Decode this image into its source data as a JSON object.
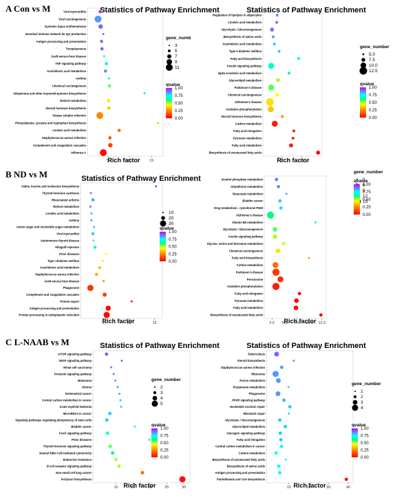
{
  "panels": [
    {
      "label": "A  Con vs M"
    },
    {
      "label": "B  ND vs M"
    },
    {
      "label": "C  L-NAAB vs M"
    }
  ],
  "scale": {
    "stops": [
      [
        0,
        "#ff0000"
      ],
      [
        0.25,
        "#ff8800"
      ],
      [
        0.45,
        "#ffff00"
      ],
      [
        0.6,
        "#00ff88"
      ],
      [
        0.75,
        "#00ffff"
      ],
      [
        1.0,
        "#cc00ff"
      ]
    ],
    "ticks": [
      "1.00",
      "0.75",
      "0.50",
      "0.25",
      "0.00"
    ]
  },
  "chart_data": [
    {
      "type": "scatter",
      "title": "Statistics of Pathway Enrichment",
      "xlabel": "Rich factor",
      "xlim": [
        1,
        17
      ],
      "xticks": [
        5,
        10,
        15
      ],
      "categories": [
        "Viral myocarditis",
        "Viral carcinogenesis",
        "Systemic lupus erythematosus",
        "Intestinal immune network for IgA production",
        "Antigen processing and presentation",
        "Toxoplasmosis",
        "Graft-versus-host disease",
        "TNF signaling pathway",
        "Arachidonic acid metabolism",
        "Asthma",
        "Chemical carcinogenesis",
        "Ubiquinone and other terpenoid-quinone biosynthesis",
        "Retinol metabolism",
        "Steroid hormone biosynthesis",
        "Herpes simplex infection",
        "Phenylalanine, tyrosine and tryptophan biosynthesis",
        "Linoleic acid metabolism",
        "Staphylococcus aureus infection",
        "Complement and coagulation cascades",
        "Influenza A"
      ],
      "x": [
        3.3,
        2.8,
        3.4,
        4.0,
        3.6,
        3.7,
        4.2,
        4.7,
        4.5,
        5.3,
        5.4,
        13.4,
        5.2,
        5.3,
        3.2,
        16.5,
        7.6,
        5.5,
        5.6,
        4.0
      ],
      "size": [
        5,
        11,
        7,
        3,
        5,
        5,
        3,
        5,
        5,
        3,
        5,
        3,
        5,
        5,
        11,
        3,
        5,
        5,
        7,
        11
      ],
      "qvalue": [
        0.95,
        0.85,
        0.9,
        0.92,
        0.88,
        0.9,
        0.7,
        0.65,
        0.85,
        0.6,
        0.55,
        0.65,
        0.4,
        0.35,
        0.25,
        0.35,
        0.2,
        0.15,
        0.12,
        0.02
      ],
      "size_legend": {
        "title": "gene_numb",
        "values": [
          3,
          5,
          7,
          9,
          11
        ]
      },
      "color_legend": {
        "title": "qvalue"
      }
    },
    {
      "type": "scatter",
      "title": "Statistics of Pathway Enrichment",
      "xlabel": "Rich factor",
      "xlim": [
        1,
        14.5
      ],
      "xticks": [
        5,
        10
      ],
      "categories": [
        "Regulation of lipolysis in adipocytes",
        "Linoleic acid metabolism",
        "Glycolysis / Gluconeogenesis",
        "Biosynthesis of amino acids",
        "Arachidonic acid metabolism",
        "Type II diabetes mellitus",
        "Fatty acid biosynthesis",
        "Insulin signaling pathway",
        "alpha-Linolenic acid metabolism",
        "Glycerolipid metabolism",
        "Parkinson's disease",
        "Chemical carcinogenesis",
        "Alzheimer's disease",
        "Oxidative phosphorylation",
        "Steroid hormone biosynthesis",
        "Carbon metabolism",
        "Fatty acid elongation",
        "Pyruvate metabolism",
        "Fatty acid metabolism",
        "Biosynthesis of unsaturated fatty acids"
      ],
      "x": [
        3.9,
        3.8,
        2.6,
        2.9,
        3.2,
        4.4,
        9.3,
        2.4,
        6.9,
        4.1,
        2.4,
        3.9,
        2.1,
        2.3,
        5.2,
        3.3,
        8.1,
        7.9,
        7.4,
        14.2
      ],
      "size": [
        5,
        5,
        7,
        5,
        5,
        5,
        5,
        10,
        5,
        7,
        10,
        7,
        12.5,
        10,
        5,
        10,
        5,
        5,
        7,
        7
      ],
      "qvalue": [
        0.85,
        0.9,
        0.88,
        0.85,
        0.8,
        0.8,
        0.65,
        0.68,
        0.6,
        0.5,
        0.55,
        0.45,
        0.4,
        0.35,
        0.25,
        0.05,
        0.05,
        0.05,
        0.05,
        0.02
      ],
      "size_legend": {
        "title": "gene_number",
        "values": [
          "5.0",
          "7.5",
          "10.0",
          "12.5"
        ]
      },
      "color_legend": {
        "title": "qvalue"
      }
    },
    {
      "type": "scatter",
      "title": "Statistics of Pathway Enrichment",
      "xlabel": "Rich factor",
      "xlim": [
        1,
        16
      ],
      "xticks": [
        5,
        10,
        15
      ],
      "categories": [
        "Valine, leucine and isoleucine biosynthesis",
        "Thyroid hormone synthesis",
        "Rheumatoid arthritis",
        "Retinol metabolism",
        "Linoleic acid metabolism",
        "Asthma",
        "Amino sugar and nucleotide sugar metabolism",
        "Viral myocarditis",
        "Autoimmune thyroid disease",
        "Allograft rejection",
        "Prion diseases",
        "Type I diabetes mellitus",
        "Arachidonic acid metabolism",
        "Staphylococcus aureus infection",
        "Graft-versus-host disease",
        "Phagosome",
        "Complement and coagulation cascades",
        "Protein export",
        "Antigen processing and presentation",
        "Protein processing in endoplasmic reticulum"
      ],
      "x": [
        15.3,
        2.5,
        2.9,
        2.4,
        2.6,
        2.6,
        3.1,
        2.9,
        3.0,
        3.3,
        5.5,
        4.8,
        4.2,
        3.6,
        5.0,
        2.4,
        5.2,
        10.5,
        5.9,
        5.6
      ],
      "size": [
        10,
        10,
        15,
        10,
        10,
        10,
        10,
        15,
        10,
        15,
        10,
        10,
        15,
        15,
        10,
        30,
        20,
        10,
        25,
        30
      ],
      "qvalue": [
        0.95,
        0.9,
        0.85,
        0.9,
        0.82,
        0.85,
        0.8,
        0.8,
        0.7,
        0.65,
        0.45,
        0.4,
        0.35,
        0.3,
        0.25,
        0.1,
        0.12,
        0.05,
        0.02,
        0.01
      ],
      "size_legend": {
        "title": "",
        "values": [
          10,
          20,
          30
        ]
      },
      "color_legend": {
        "title": "qvalue"
      }
    },
    {
      "type": "scatter",
      "title": "",
      "xlabel": "Rich factor",
      "xlim": [
        1.5,
        12.8
      ],
      "xticks": [
        "2.5",
        "5.0",
        "7.5",
        "10.0",
        "12.5"
      ],
      "categories": [
        "Inositol phosphate metabolism",
        "Glutathione metabolism",
        "Butanoate metabolism",
        "Bladder cancer",
        "Drug metabolism - cytochrome P450",
        "Alzheimer's disease",
        "Vitamin B6 metabolism",
        "Glycolysis / Gluconeogenesis",
        "Insulin signaling pathway",
        "Glycine, serine and threonine metabolism",
        "Chemical carcinogenesis",
        "Fatty acid biosynthesis",
        "Carbon metabolism",
        "Parkinson's disease",
        "Peroxisome",
        "Oxidative phosphorylation",
        "Fatty acid elongation",
        "Pyruvate metabolism",
        "Fatty acid metabolism",
        "Biosynthesis of unsaturated fatty acids"
      ],
      "x": [
        3.4,
        3.8,
        5.4,
        4.1,
        4.3,
        2.2,
        11.2,
        3.1,
        3.1,
        4.8,
        3.7,
        9.9,
        3.2,
        3.3,
        4.2,
        3.3,
        8.0,
        7.4,
        7.3,
        12.3
      ],
      "size": [
        6,
        6,
        3,
        6,
        6,
        15,
        3,
        9,
        9,
        6,
        9,
        3,
        12,
        15,
        12,
        15,
        6,
        9,
        9,
        6
      ],
      "qvalue": [
        0.88,
        0.85,
        0.82,
        0.8,
        0.78,
        0.6,
        0.6,
        0.55,
        0.5,
        0.48,
        0.4,
        0.3,
        0.2,
        0.1,
        0.08,
        0.05,
        0.03,
        0.02,
        0.02,
        0.01
      ],
      "size_legend": {
        "title": "gene_number",
        "values": [
          3,
          6,
          9,
          12,
          15
        ]
      },
      "color_legend": {
        "title": "qvalue"
      }
    },
    {
      "type": "scatter",
      "title": "Statistics of Pathway Enrichment",
      "xlabel": "Rich factor",
      "xlim": [
        4,
        31
      ],
      "xticks": [
        10,
        15,
        20,
        25,
        30
      ],
      "categories": [
        "mTOR signaling pathway",
        "VEGF signaling pathway",
        "Renal cell carcinoma",
        "Prolactin signaling pathway",
        "Melanoma",
        "Glioma",
        "Endometrial cancer",
        "Central carbon metabolism in cancer",
        "Acute myeloid leukemia",
        "MicroRNAs in cancer",
        "Signaling pathways regulating pluripotency of stem cells",
        "Bladder cancer",
        "FoxO signaling pathway",
        "Prion diseases",
        "Thyroid hormone signaling pathway",
        "Natural killer cell mediated cytotoxicity",
        "Endocrine resistance",
        "B cell receptor signaling pathway",
        "Non-small cell lung cancer",
        "N-Glycan biosynthesis"
      ],
      "x": [
        7.2,
        11.7,
        8.6,
        9.3,
        9.8,
        10.5,
        11.0,
        11.3,
        11.5,
        8.2,
        7.3,
        15.6,
        7.5,
        19.8,
        8.3,
        9.0,
        10.0,
        10.9,
        17.8,
        29.6
      ],
      "size": [
        3,
        2,
        2,
        2,
        2,
        2,
        2,
        2,
        2,
        3,
        3,
        2,
        3,
        2,
        3,
        3,
        3,
        3,
        3,
        5
      ],
      "qvalue": [
        0.9,
        0.9,
        0.88,
        0.88,
        0.85,
        0.85,
        0.82,
        0.82,
        0.8,
        0.8,
        0.8,
        0.75,
        0.7,
        0.6,
        0.55,
        0.6,
        0.5,
        0.5,
        0.2,
        0.02
      ],
      "size_legend": {
        "title": "gene_number",
        "values": [
          2,
          3,
          4,
          5
        ]
      },
      "color_legend": {
        "title": "qvalue"
      }
    },
    {
      "type": "scatter",
      "title": "Statistics of Pathway Enrichment",
      "xlabel": "Rich factor",
      "xlim": [
        0,
        41
      ],
      "xticks": [
        10,
        20,
        30,
        40
      ],
      "categories": [
        "Tuberculosis",
        "Steroid biosynthesis",
        "Staphylococcus aureus infection",
        "Ribosome",
        "Purine metabolism",
        "Propanoate metabolism",
        "Phagosome",
        "PPAR signaling pathway",
        "Nucleotide excision repair",
        "Mismatch repair",
        "Glycolysis / Gluconeogenesis",
        "Glycerolipid metabolism",
        "Glucagon signaling pathway",
        "Fatty acid elongation",
        "Central carbon metabolism in cancer",
        "Carbon metabolism",
        "Biosynthesis of unsaturated fatty acids",
        "Biosynthesis of amino acids",
        "Antigen processing and presentation",
        "Pantothenate and CoA biosynthesis"
      ],
      "x": [
        3.8,
        12.5,
        6.4,
        3.3,
        4.7,
        9.8,
        4.5,
        7.5,
        10.5,
        10.0,
        5.4,
        8.2,
        5.7,
        6.0,
        6.3,
        3.6,
        8.5,
        4.9,
        5.4,
        39.0
      ],
      "size": [
        3,
        1,
        2,
        4,
        3,
        1,
        3,
        2,
        2,
        1,
        2,
        2,
        2,
        2,
        2,
        2,
        1,
        2,
        2,
        2
      ],
      "qvalue": [
        0.9,
        0.85,
        0.85,
        0.85,
        0.85,
        0.8,
        0.85,
        0.82,
        0.8,
        0.8,
        0.8,
        0.8,
        0.8,
        0.8,
        0.75,
        0.75,
        0.75,
        0.75,
        0.75,
        0.05
      ],
      "size_legend": {
        "title": "gene_number",
        "values": [
          1,
          2,
          3,
          4
        ]
      },
      "color_legend": {
        "title": "qvalue"
      }
    }
  ]
}
